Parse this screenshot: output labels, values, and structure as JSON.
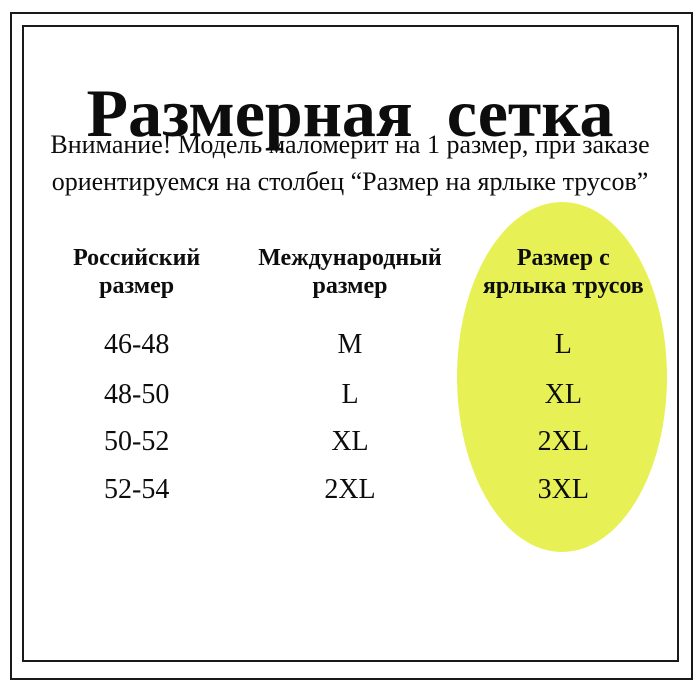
{
  "page": {
    "title": "Размерная  сетка",
    "warning_line1": "Внимание! Модель маломерит на 1 размер, при заказе",
    "warning_line2": "ориентируемся на столбец “Размер на ярлыке трусов”"
  },
  "table": {
    "headers": [
      {
        "line1": "Российский",
        "line2": "размер"
      },
      {
        "line1": "Международный",
        "line2": "размер"
      },
      {
        "line1": "Размер с",
        "line2": "ярлыка трусов"
      }
    ],
    "rows": [
      {
        "russian": "46-48",
        "international": "M",
        "label": "L"
      },
      {
        "russian": "48-50",
        "international": "L",
        "label": "XL"
      },
      {
        "russian": "50-52",
        "international": "XL",
        "label": "2XL"
      },
      {
        "russian": "52-54",
        "international": "2XL",
        "label": "3XL"
      }
    ]
  },
  "highlight": {
    "color": "#e7f156",
    "highlighted_column": "Размер с ярлыка трусов"
  }
}
